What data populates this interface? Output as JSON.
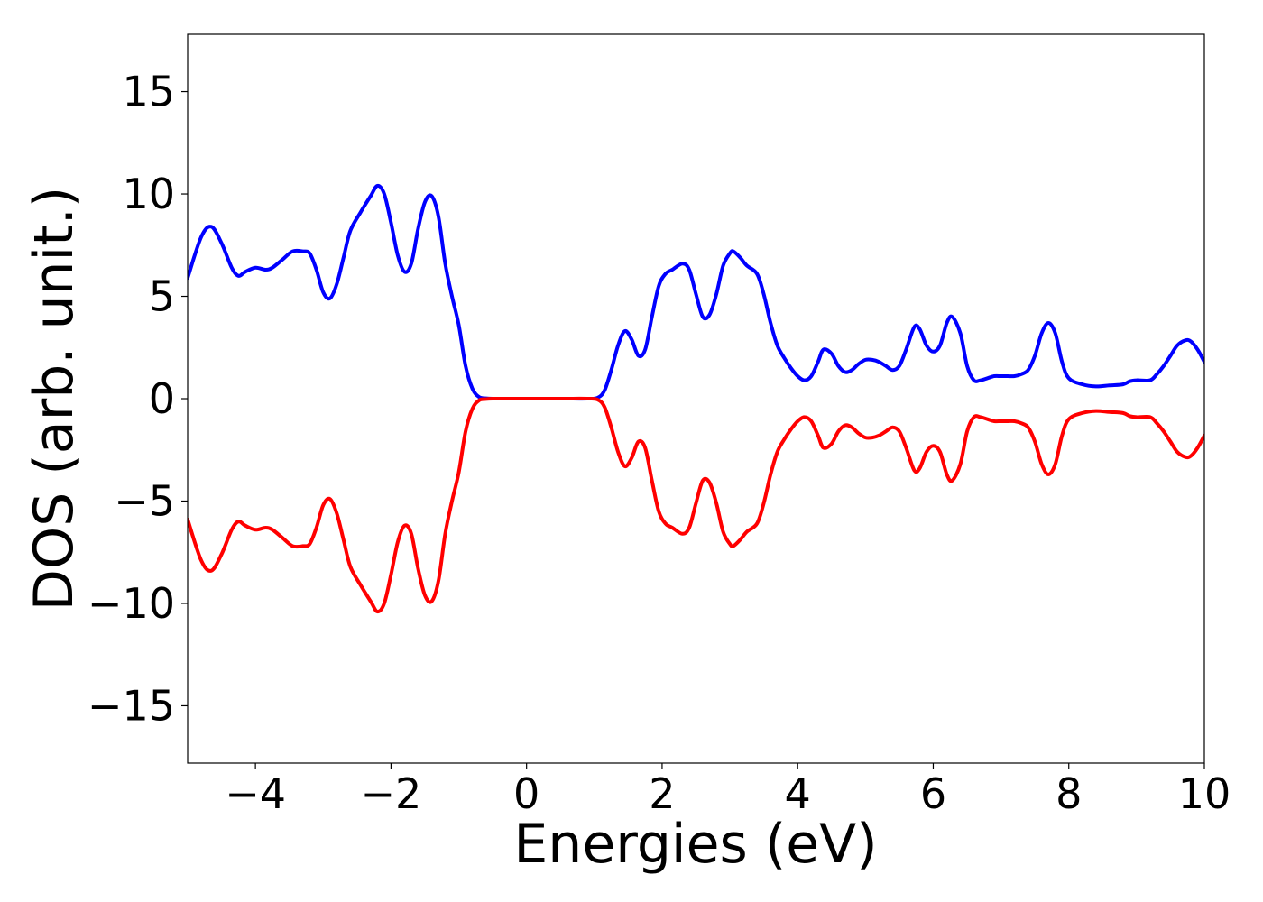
{
  "chart_data": {
    "type": "line",
    "title": "",
    "xlabel": "Energies (eV)",
    "ylabel": "DOS (arb. unit.)",
    "xlim": [
      -5,
      10
    ],
    "ylim": [
      -17.8,
      17.8
    ],
    "xticks": [
      -4,
      -2,
      0,
      2,
      4,
      6,
      8,
      10
    ],
    "xtick_labels": [
      "−4",
      "−2",
      "0",
      "2",
      "4",
      "6",
      "8",
      "10"
    ],
    "yticks": [
      15,
      10,
      5,
      0,
      -5,
      -10,
      -15
    ],
    "ytick_labels": [
      "15",
      "10",
      "5",
      "0",
      "−5",
      "−10",
      "−15"
    ],
    "grid": false,
    "legend": "none",
    "series": [
      {
        "color": "#0000ff",
        "x": [
          -5.0,
          -4.8,
          -4.65,
          -4.5,
          -4.35,
          -4.25,
          -4.15,
          -4.0,
          -3.85,
          -3.75,
          -3.6,
          -3.45,
          -3.3,
          -3.2,
          -3.1,
          -3.0,
          -2.9,
          -2.8,
          -2.7,
          -2.6,
          -2.45,
          -2.3,
          -2.2,
          -2.1,
          -2.0,
          -1.9,
          -1.8,
          -1.7,
          -1.6,
          -1.5,
          -1.4,
          -1.3,
          -1.2,
          -1.1,
          -1.0,
          -0.9,
          -0.8,
          -0.7,
          -0.6,
          -0.5,
          -0.3,
          0.0,
          0.5,
          0.9,
          1.05,
          1.15,
          1.25,
          1.35,
          1.45,
          1.55,
          1.65,
          1.75,
          1.85,
          1.95,
          2.05,
          2.15,
          2.3,
          2.4,
          2.5,
          2.6,
          2.7,
          2.8,
          2.9,
          3.0,
          3.05,
          3.15,
          3.25,
          3.4,
          3.5,
          3.6,
          3.7,
          3.8,
          3.9,
          4.0,
          4.1,
          4.2,
          4.3,
          4.38,
          4.5,
          4.6,
          4.7,
          4.8,
          4.9,
          5.0,
          5.1,
          5.2,
          5.3,
          5.4,
          5.5,
          5.6,
          5.72,
          5.8,
          5.9,
          6.0,
          6.1,
          6.2,
          6.28,
          6.4,
          6.5,
          6.6,
          6.7,
          6.8,
          6.9,
          7.0,
          7.1,
          7.2,
          7.3,
          7.4,
          7.5,
          7.6,
          7.7,
          7.8,
          7.9,
          8.0,
          8.2,
          8.4,
          8.6,
          8.8,
          8.9,
          9.0,
          9.2,
          9.3,
          9.4,
          9.5,
          9.6,
          9.72,
          9.8,
          9.9,
          10.0
        ],
        "y": [
          5.9,
          7.9,
          8.4,
          7.6,
          6.4,
          6.0,
          6.2,
          6.4,
          6.3,
          6.4,
          6.8,
          7.2,
          7.2,
          7.1,
          6.3,
          5.2,
          4.9,
          5.6,
          6.9,
          8.2,
          9.1,
          9.9,
          10.4,
          10.0,
          8.6,
          7.0,
          6.2,
          6.6,
          8.3,
          9.6,
          9.9,
          8.9,
          6.6,
          5.0,
          3.6,
          1.6,
          0.5,
          0.08,
          0.02,
          0.0,
          0.0,
          0.0,
          0.0,
          0.0,
          0.05,
          0.4,
          1.4,
          2.6,
          3.3,
          2.9,
          2.1,
          2.4,
          4.0,
          5.5,
          6.1,
          6.3,
          6.6,
          6.3,
          5.1,
          4.0,
          4.1,
          5.1,
          6.5,
          7.1,
          7.2,
          6.9,
          6.5,
          6.1,
          5.1,
          3.7,
          2.6,
          2.0,
          1.5,
          1.1,
          0.9,
          1.1,
          1.8,
          2.4,
          2.2,
          1.6,
          1.3,
          1.4,
          1.7,
          1.9,
          1.9,
          1.8,
          1.6,
          1.4,
          1.6,
          2.4,
          3.5,
          3.4,
          2.6,
          2.3,
          2.6,
          3.7,
          4.0,
          3.2,
          1.6,
          0.9,
          0.9,
          1.0,
          1.1,
          1.1,
          1.1,
          1.1,
          1.2,
          1.4,
          2.1,
          3.2,
          3.7,
          3.2,
          1.8,
          1.0,
          0.7,
          0.6,
          0.65,
          0.7,
          0.85,
          0.9,
          0.9,
          1.2,
          1.6,
          2.1,
          2.6,
          2.85,
          2.8,
          2.4,
          1.8
        ]
      },
      {
        "color": "#ff0000",
        "x": [
          -5.0,
          -4.8,
          -4.65,
          -4.5,
          -4.35,
          -4.25,
          -4.15,
          -4.0,
          -3.85,
          -3.75,
          -3.6,
          -3.45,
          -3.3,
          -3.2,
          -3.1,
          -3.0,
          -2.9,
          -2.8,
          -2.7,
          -2.6,
          -2.45,
          -2.3,
          -2.2,
          -2.1,
          -2.0,
          -1.9,
          -1.8,
          -1.7,
          -1.6,
          -1.5,
          -1.4,
          -1.3,
          -1.2,
          -1.1,
          -1.0,
          -0.9,
          -0.8,
          -0.7,
          -0.6,
          -0.5,
          -0.3,
          0.0,
          0.5,
          0.9,
          1.05,
          1.15,
          1.25,
          1.35,
          1.45,
          1.55,
          1.65,
          1.75,
          1.85,
          1.95,
          2.05,
          2.15,
          2.3,
          2.4,
          2.5,
          2.6,
          2.7,
          2.8,
          2.9,
          3.0,
          3.05,
          3.15,
          3.25,
          3.4,
          3.5,
          3.6,
          3.7,
          3.8,
          3.9,
          4.0,
          4.1,
          4.2,
          4.3,
          4.38,
          4.5,
          4.6,
          4.7,
          4.8,
          4.9,
          5.0,
          5.1,
          5.2,
          5.3,
          5.4,
          5.5,
          5.6,
          5.72,
          5.8,
          5.9,
          6.0,
          6.1,
          6.2,
          6.28,
          6.4,
          6.5,
          6.6,
          6.7,
          6.8,
          6.9,
          7.0,
          7.1,
          7.2,
          7.3,
          7.4,
          7.5,
          7.6,
          7.7,
          7.8,
          7.9,
          8.0,
          8.2,
          8.4,
          8.6,
          8.8,
          8.9,
          9.0,
          9.2,
          9.3,
          9.4,
          9.5,
          9.6,
          9.72,
          9.8,
          9.9,
          10.0
        ],
        "y": [
          -5.9,
          -7.9,
          -8.4,
          -7.6,
          -6.4,
          -6.0,
          -6.2,
          -6.4,
          -6.3,
          -6.4,
          -6.8,
          -7.2,
          -7.2,
          -7.1,
          -6.3,
          -5.2,
          -4.9,
          -5.6,
          -6.9,
          -8.2,
          -9.1,
          -9.9,
          -10.4,
          -10.0,
          -8.6,
          -7.0,
          -6.2,
          -6.6,
          -8.3,
          -9.6,
          -9.9,
          -8.9,
          -6.6,
          -5.0,
          -3.6,
          -1.6,
          -0.5,
          -0.08,
          -0.02,
          0.0,
          0.0,
          0.0,
          0.0,
          0.0,
          -0.05,
          -0.4,
          -1.4,
          -2.6,
          -3.3,
          -2.9,
          -2.1,
          -2.4,
          -4.0,
          -5.5,
          -6.1,
          -6.3,
          -6.6,
          -6.3,
          -5.1,
          -4.0,
          -4.1,
          -5.1,
          -6.5,
          -7.1,
          -7.2,
          -6.9,
          -6.5,
          -6.1,
          -5.1,
          -3.7,
          -2.6,
          -2.0,
          -1.5,
          -1.1,
          -0.9,
          -1.1,
          -1.8,
          -2.4,
          -2.2,
          -1.6,
          -1.3,
          -1.4,
          -1.7,
          -1.9,
          -1.9,
          -1.8,
          -1.6,
          -1.4,
          -1.6,
          -2.4,
          -3.5,
          -3.4,
          -2.6,
          -2.3,
          -2.6,
          -3.7,
          -4.0,
          -3.2,
          -1.6,
          -0.9,
          -0.9,
          -1.0,
          -1.1,
          -1.1,
          -1.1,
          -1.1,
          -1.2,
          -1.4,
          -2.1,
          -3.2,
          -3.7,
          -3.2,
          -1.8,
          -1.0,
          -0.7,
          -0.6,
          -0.65,
          -0.7,
          -0.85,
          -0.9,
          -0.9,
          -1.2,
          -1.6,
          -2.1,
          -2.6,
          -2.85,
          -2.8,
          -2.4,
          -1.8
        ]
      }
    ]
  }
}
